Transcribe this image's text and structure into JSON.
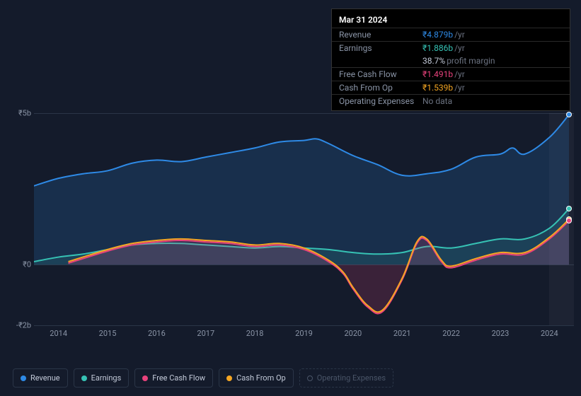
{
  "tooltip": {
    "date": "Mar 31 2024",
    "rows": [
      {
        "label": "Revenue",
        "value": "₹4.879b",
        "unit": "/yr",
        "color": "#2e8ae6"
      },
      {
        "label": "Earnings",
        "value": "₹1.886b",
        "unit": "/yr",
        "color": "#36c2b4"
      },
      {
        "label": "",
        "value": "38.7%",
        "unit": "profit margin",
        "color": "#c3cad9",
        "noBorder": true
      },
      {
        "label": "Free Cash Flow",
        "value": "₹1.491b",
        "unit": "/yr",
        "color": "#e8427c"
      },
      {
        "label": "Cash From Op",
        "value": "₹1.539b",
        "unit": "/yr",
        "color": "#f5a623"
      },
      {
        "label": "Operating Expenses",
        "value": "No data",
        "unit": "",
        "color": "#6b7280"
      }
    ]
  },
  "chart": {
    "type": "area-line",
    "background_color": "#141b2b",
    "grid_color": "#2a3547",
    "text_color": "#8a94a6",
    "ylim": [
      -2,
      5
    ],
    "y_ticks": [
      {
        "value": 5,
        "label": "₹5b"
      },
      {
        "value": 0,
        "label": "₹0"
      },
      {
        "value": -2,
        "label": "-₹2b"
      }
    ],
    "x_range": [
      2013.5,
      2024.5
    ],
    "x_ticks": [
      2014,
      2015,
      2016,
      2017,
      2018,
      2019,
      2020,
      2021,
      2022,
      2023,
      2024
    ],
    "highlight_x": [
      2024,
      2024.5
    ],
    "series": {
      "revenue": {
        "label": "Revenue",
        "color": "#2e8ae6",
        "fill_opacity": 0.18,
        "line_width": 2,
        "data": [
          [
            2013.5,
            2.6
          ],
          [
            2014,
            2.85
          ],
          [
            2014.5,
            3.0
          ],
          [
            2015,
            3.1
          ],
          [
            2015.5,
            3.35
          ],
          [
            2016,
            3.45
          ],
          [
            2016.5,
            3.4
          ],
          [
            2017,
            3.55
          ],
          [
            2017.5,
            3.7
          ],
          [
            2018,
            3.85
          ],
          [
            2018.5,
            4.05
          ],
          [
            2019,
            4.1
          ],
          [
            2019.25,
            4.15
          ],
          [
            2019.5,
            4.0
          ],
          [
            2020,
            3.6
          ],
          [
            2020.5,
            3.3
          ],
          [
            2021,
            2.95
          ],
          [
            2021.5,
            3.0
          ],
          [
            2022,
            3.15
          ],
          [
            2022.5,
            3.55
          ],
          [
            2023,
            3.65
          ],
          [
            2023.25,
            3.85
          ],
          [
            2023.5,
            3.65
          ],
          [
            2024,
            4.2
          ],
          [
            2024.4,
            4.95
          ]
        ]
      },
      "earnings": {
        "label": "Earnings",
        "color": "#36c2b4",
        "fill_opacity": 0.12,
        "line_width": 2,
        "data": [
          [
            2013.5,
            0.1
          ],
          [
            2014,
            0.25
          ],
          [
            2014.5,
            0.35
          ],
          [
            2015,
            0.5
          ],
          [
            2015.5,
            0.65
          ],
          [
            2016,
            0.7
          ],
          [
            2016.5,
            0.7
          ],
          [
            2017,
            0.65
          ],
          [
            2017.5,
            0.6
          ],
          [
            2018,
            0.55
          ],
          [
            2018.5,
            0.6
          ],
          [
            2019,
            0.55
          ],
          [
            2019.5,
            0.5
          ],
          [
            2020,
            0.4
          ],
          [
            2020.5,
            0.35
          ],
          [
            2021,
            0.4
          ],
          [
            2021.5,
            0.6
          ],
          [
            2022,
            0.55
          ],
          [
            2022.5,
            0.7
          ],
          [
            2023,
            0.85
          ],
          [
            2023.5,
            0.85
          ],
          [
            2024,
            1.2
          ],
          [
            2024.4,
            1.85
          ]
        ]
      },
      "freeCashFlow": {
        "label": "Free Cash Flow",
        "color": "#e8427c",
        "fill_opacity": 0.18,
        "line_width": 2,
        "data": [
          [
            2014.2,
            0.05
          ],
          [
            2015,
            0.45
          ],
          [
            2015.5,
            0.65
          ],
          [
            2016,
            0.75
          ],
          [
            2016.5,
            0.8
          ],
          [
            2017,
            0.75
          ],
          [
            2017.5,
            0.7
          ],
          [
            2018,
            0.6
          ],
          [
            2018.5,
            0.65
          ],
          [
            2019,
            0.5
          ],
          [
            2019.5,
            0.1
          ],
          [
            2019.8,
            -0.3
          ],
          [
            2020,
            -0.8
          ],
          [
            2020.3,
            -1.4
          ],
          [
            2020.6,
            -1.55
          ],
          [
            2021,
            -0.5
          ],
          [
            2021.3,
            0.7
          ],
          [
            2021.5,
            0.8
          ],
          [
            2021.8,
            0.1
          ],
          [
            2022,
            -0.1
          ],
          [
            2022.5,
            0.15
          ],
          [
            2023,
            0.35
          ],
          [
            2023.5,
            0.35
          ],
          [
            2024,
            0.85
          ],
          [
            2024.4,
            1.45
          ]
        ]
      },
      "cashFromOp": {
        "label": "Cash From Op",
        "color": "#f5a623",
        "fill_opacity": 0,
        "line_width": 2,
        "data": [
          [
            2014.2,
            0.1
          ],
          [
            2015,
            0.5
          ],
          [
            2015.5,
            0.7
          ],
          [
            2016,
            0.8
          ],
          [
            2016.5,
            0.85
          ],
          [
            2017,
            0.8
          ],
          [
            2017.5,
            0.75
          ],
          [
            2018,
            0.65
          ],
          [
            2018.5,
            0.7
          ],
          [
            2019,
            0.55
          ],
          [
            2019.5,
            0.15
          ],
          [
            2019.8,
            -0.25
          ],
          [
            2020,
            -0.75
          ],
          [
            2020.3,
            -1.35
          ],
          [
            2020.6,
            -1.5
          ],
          [
            2021,
            -0.45
          ],
          [
            2021.3,
            0.75
          ],
          [
            2021.5,
            0.85
          ],
          [
            2021.8,
            0.15
          ],
          [
            2022,
            -0.05
          ],
          [
            2022.5,
            0.2
          ],
          [
            2023,
            0.4
          ],
          [
            2023.5,
            0.4
          ],
          [
            2024,
            0.9
          ],
          [
            2024.4,
            1.5
          ]
        ]
      }
    },
    "markers": [
      {
        "x": 2024.4,
        "y": 4.95,
        "color": "#2e8ae6"
      },
      {
        "x": 2024.4,
        "y": 1.85,
        "color": "#36c2b4"
      },
      {
        "x": 2024.4,
        "y": 1.5,
        "color": "#f5a623"
      },
      {
        "x": 2024.4,
        "y": 1.45,
        "color": "#e8427c"
      }
    ]
  },
  "legend": [
    {
      "key": "revenue",
      "label": "Revenue",
      "color": "#2e8ae6",
      "active": true
    },
    {
      "key": "earnings",
      "label": "Earnings",
      "color": "#36c2b4",
      "active": true
    },
    {
      "key": "freeCashFlow",
      "label": "Free Cash Flow",
      "color": "#e8427c",
      "active": true
    },
    {
      "key": "cashFromOp",
      "label": "Cash From Op",
      "color": "#f5a623",
      "active": true
    },
    {
      "key": "opExpenses",
      "label": "Operating Expenses",
      "color": "#4a5568",
      "active": false
    }
  ]
}
